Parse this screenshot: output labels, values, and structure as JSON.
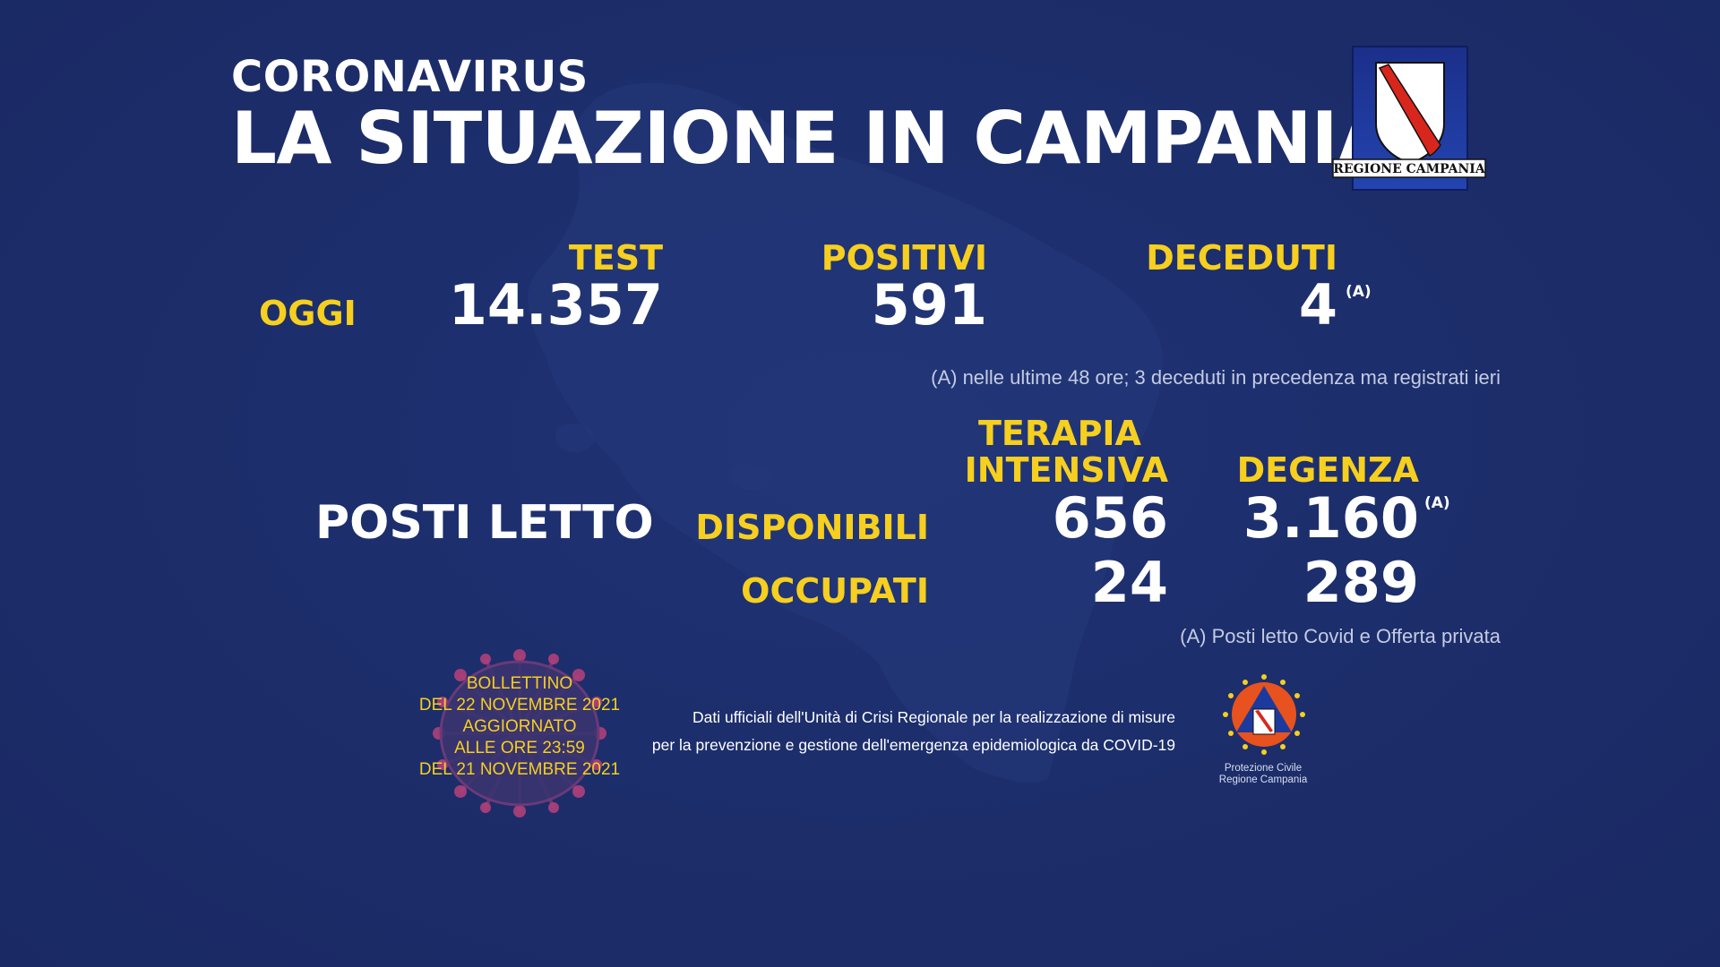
{
  "header": {
    "subtitle": "CORONAVIRUS",
    "title": "LA SITUAZIONE IN CAMPANIA",
    "logo_text": "REGIONE CAMPANIA"
  },
  "today": {
    "row_label": "OGGI",
    "test": {
      "label": "TEST",
      "value": "14.357"
    },
    "positive": {
      "label": "POSITIVI",
      "value": "591"
    },
    "deceased": {
      "label": "DECEDUTI",
      "value": "4",
      "marker": "(A)"
    },
    "note": "(A) nelle ultime 48 ore; 3 deceduti in precedenza ma registrati ieri"
  },
  "beds": {
    "section_label": "POSTI LETTO",
    "icu_label_line1": "TERAPIA",
    "icu_label_line2": "INTENSIVA",
    "ward_label": "DEGENZA",
    "available_label": "DISPONIBILI",
    "occupied_label": "OCCUPATI",
    "icu_available": "656",
    "ward_available": "3.160",
    "ward_available_marker": "(A)",
    "icu_occupied": "24",
    "ward_occupied": "289",
    "note": "(A) Posti letto Covid e Offerta privata"
  },
  "bulletin": {
    "line1": "BOLLETTINO",
    "line2": "DEL 22 NOVEMBRE 2021",
    "line3": "AGGIORNATO",
    "line4": "ALLE ORE 23:59",
    "line5": "DEL 21 NOVEMBRE 2021"
  },
  "source": {
    "line1": "Dati ufficiali dell'Unità di Crisi Regionale per la realizzazione di misure",
    "line2": "per la prevenzione e gestione dell'emergenza epidemiologica da COVID-19"
  },
  "civil_protection": {
    "line1": "Protezione Civile",
    "line2": "Regione Campania"
  },
  "colors": {
    "background": "#1c2d6a",
    "accent_yellow": "#f6cf1f",
    "text_white": "#ffffff"
  }
}
